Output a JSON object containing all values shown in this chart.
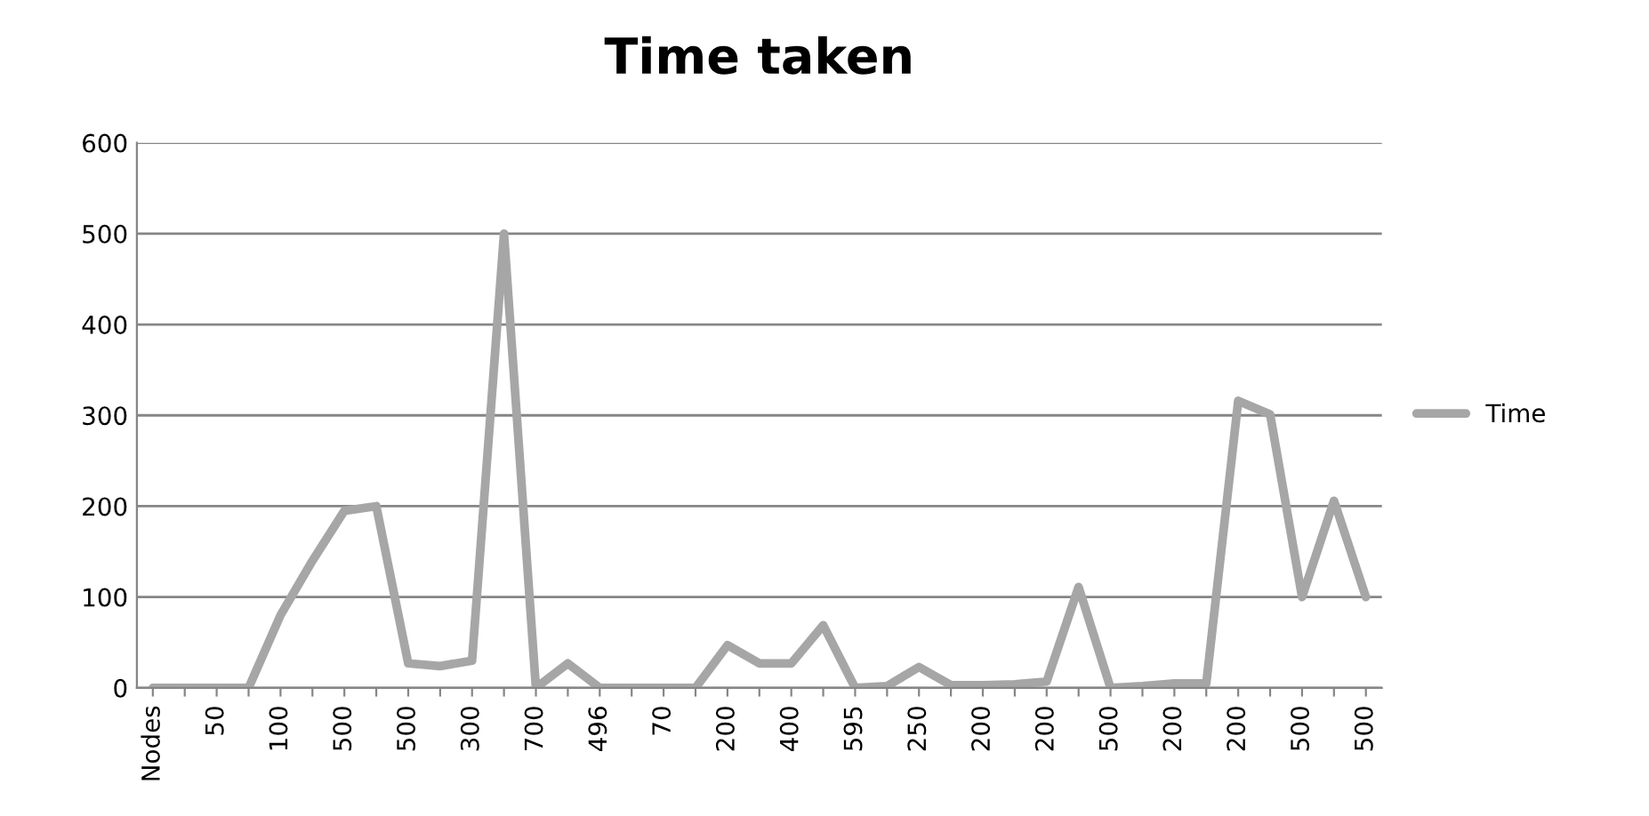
{
  "chart_data": {
    "type": "line",
    "title": "Time taken",
    "categories": [
      "Nodes",
      null,
      "50",
      null,
      "100",
      null,
      "500",
      null,
      "500",
      null,
      "300",
      null,
      "700",
      null,
      "496",
      null,
      "70",
      null,
      "200",
      null,
      "400",
      null,
      "595",
      null,
      "250",
      null,
      "200",
      null,
      "200",
      null,
      "500",
      null,
      "200",
      null,
      "200",
      null,
      "500",
      null,
      "500"
    ],
    "series": [
      {
        "name": "Time",
        "color": "#a6a6a6",
        "values": [
          0,
          0,
          0,
          0,
          80,
          140,
          195,
          200,
          27,
          24,
          30,
          500,
          0,
          27,
          0,
          0,
          0,
          0,
          47,
          27,
          27,
          69,
          0,
          2,
          23,
          3,
          3,
          4,
          7,
          111,
          0,
          2,
          5,
          5,
          316,
          301,
          100,
          206,
          100
        ]
      }
    ],
    "ylim": [
      0,
      600
    ],
    "yticks": [
      0,
      100,
      200,
      300,
      400,
      500,
      600
    ],
    "grid": "y",
    "legend": "right",
    "marker": "none",
    "line_style": "solid"
  }
}
